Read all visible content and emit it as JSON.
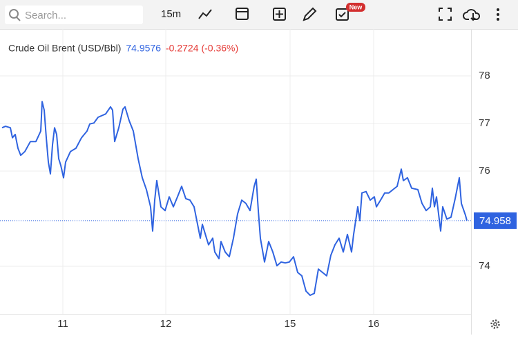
{
  "toolbar": {
    "search_placeholder": "Search...",
    "interval": "15m",
    "badge": "New"
  },
  "chart_data": {
    "type": "line",
    "title": "Crude Oil Brent (USD/Bbl)",
    "last_price": 74.9576,
    "change": -0.2724,
    "change_pct": {
      "value": -0.36,
      "label": "(-0.36%)"
    },
    "price_line": 74.958,
    "series": [
      {
        "name": "Crude Oil Brent (USD/Bbl)",
        "color": "#2f63e0",
        "values": [
          76.91,
          76.94,
          76.91,
          76.7,
          76.77,
          76.48,
          76.33,
          76.41,
          76.62,
          76.62,
          76.84,
          77.46,
          77.28,
          76.7,
          76.19,
          75.94,
          76.55,
          76.91,
          76.77,
          76.26,
          76.12,
          75.86,
          76.19,
          76.41,
          76.48,
          76.7,
          76.84,
          76.99,
          77.01,
          77.13,
          77.2,
          77.35,
          77.28,
          76.62,
          76.91,
          77.3,
          77.35,
          77.06,
          76.84,
          76.26,
          75.86,
          75.61,
          75.25,
          74.74,
          75.39,
          75.8,
          75.25,
          75.17,
          75.46,
          75.25,
          75.46,
          75.68,
          75.42,
          75.39,
          75.25,
          74.81,
          74.59,
          74.88,
          74.59,
          74.45,
          74.59,
          74.3,
          74.16,
          74.52,
          74.3,
          74.2,
          74.59,
          75.1,
          75.39,
          75.32,
          75.17,
          75.68,
          75.83,
          75.17,
          74.59,
          74.09,
          74.52,
          74.3,
          74.01,
          74.09,
          74.07,
          74.09,
          74.2,
          73.87,
          73.8,
          73.48,
          73.39,
          73.43,
          73.94,
          73.87,
          73.8,
          74.23,
          74.45,
          74.59,
          74.3,
          74.67,
          74.3,
          74.67,
          75.25,
          74.96,
          75.54,
          75.57,
          75.39,
          75.46,
          75.25,
          75.39,
          75.54,
          75.54,
          75.61,
          75.68,
          76.04,
          75.8,
          75.86,
          75.64,
          75.61,
          75.32,
          75.17,
          75.25,
          75.64,
          75.25,
          75.46,
          74.74,
          75.25,
          74.99,
          75.03,
          75.42,
          75.86,
          75.32,
          75.07,
          74.96
        ]
      }
    ],
    "x": [
      3,
      8,
      15,
      18,
      22,
      26,
      30,
      36,
      44,
      52,
      59,
      61,
      64,
      67,
      70,
      73,
      76,
      79,
      82,
      85,
      88,
      92,
      95,
      102,
      110,
      118,
      126,
      130,
      136,
      142,
      153,
      160,
      163,
      166,
      172,
      178,
      181,
      187,
      193,
      200,
      206,
      212,
      218,
      221,
      224,
      227,
      233,
      239,
      245,
      251,
      257,
      263,
      269,
      275,
      281,
      287,
      290,
      293,
      299,
      302,
      308,
      311,
      317,
      320,
      326,
      332,
      338,
      344,
      350,
      356,
      362,
      368,
      371,
      374,
      377,
      383,
      389,
      395,
      401,
      407,
      413,
      419,
      425,
      431,
      437,
      443,
      449,
      455,
      461,
      467,
      473,
      479,
      485,
      491,
      497,
      503,
      509,
      512,
      518,
      521,
      524,
      530,
      536,
      542,
      545,
      551,
      557,
      563,
      569,
      575,
      581,
      584,
      590,
      596,
      605,
      611,
      617,
      623,
      626,
      629,
      632,
      638,
      641,
      647,
      653,
      659,
      665,
      668,
      674,
      676
    ],
    "xlim": [
      0,
      682
    ],
    "xticks": [
      {
        "value": 91,
        "label": "11"
      },
      {
        "value": 240,
        "label": "12"
      },
      {
        "value": 420,
        "label": "15"
      },
      {
        "value": 541,
        "label": "16"
      }
    ],
    "ylim": [
      73,
      79
    ],
    "yticks": [
      74,
      76,
      77,
      78
    ],
    "grid": true
  }
}
